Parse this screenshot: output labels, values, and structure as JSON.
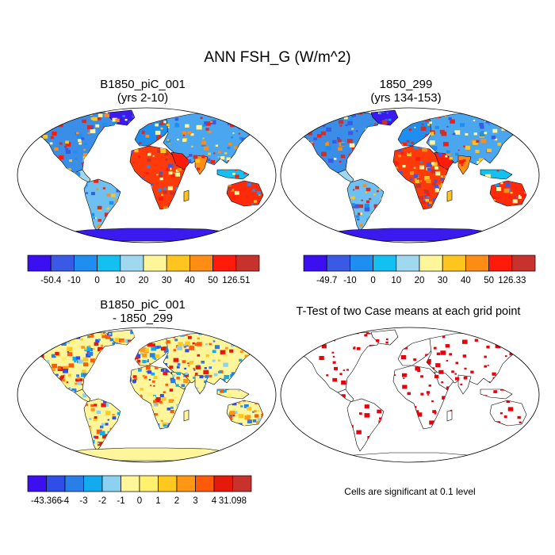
{
  "figure": {
    "title": "ANN FSH_G (W/m^2)"
  },
  "panels": [
    {
      "id": "case1",
      "title_line1": "B1850_piC_001",
      "title_line2": "(yrs 2-10)",
      "colorbar": {
        "labels": [
          "-50.4",
          "-10",
          "0",
          "10",
          "20",
          "30",
          "40",
          "50",
          "126.51"
        ],
        "colors": [
          "#3b0ff0",
          "#3a5ae6",
          "#1e8ff0",
          "#14c0f0",
          "#a0d8f0",
          "#fff59a",
          "#ffc51e",
          "#ff8c14",
          "#ff1a0a",
          "#c8322d"
        ]
      }
    },
    {
      "id": "case2",
      "title_line1": "1850_299",
      "title_line2": "(yrs 134-153)",
      "colorbar": {
        "labels": [
          "-49.7",
          "-10",
          "0",
          "10",
          "20",
          "30",
          "40",
          "50",
          "126.33"
        ],
        "colors": [
          "#3b0ff0",
          "#3a5ae6",
          "#1e8ff0",
          "#14c0f0",
          "#a0d8f0",
          "#fff59a",
          "#ffc51e",
          "#ff8c14",
          "#ff1a0a",
          "#c8322d"
        ]
      }
    },
    {
      "id": "diff",
      "title_line1": "B1850_piC_001",
      "title_line2": "- 1850_299",
      "colorbar": {
        "labels": [
          "-43.366",
          "-4",
          "-3",
          "-2",
          "-1",
          "0",
          "1",
          "2",
          "3",
          "4",
          "31.098"
        ],
        "colors": [
          "#3b0ff0",
          "#2f4ee8",
          "#2a7ee8",
          "#14aaf0",
          "#8cd2f0",
          "#fff59a",
          "#fff06e",
          "#ffc81e",
          "#ff9614",
          "#ff5a0a",
          "#e61a0a",
          "#c8322d"
        ]
      }
    },
    {
      "id": "ttest",
      "title_line1": "T-Test of two Case means at each grid point",
      "note": "Cells are significant at 0.1 level"
    }
  ],
  "map_colors": {
    "ocean": "#ffffff",
    "coast": "#000000",
    "antarctica_case": "#3b1af0",
    "antarctica_diff": "#fff59a",
    "significant": "#e8000a"
  }
}
